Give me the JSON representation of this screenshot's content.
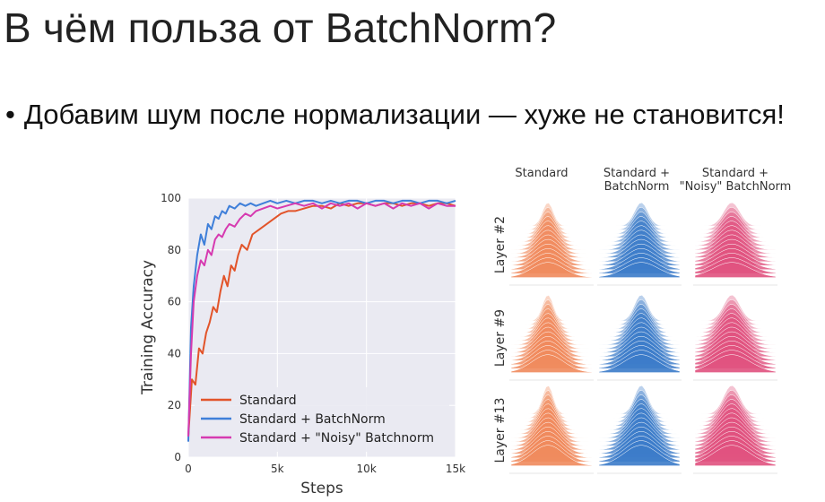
{
  "slide": {
    "title": "В чём польза от BatchNorm?",
    "bullet": "Добавим шум после нормализации — хуже не становится!"
  },
  "chart_data": [
    {
      "type": "line",
      "xlabel": "Steps",
      "ylabel": "Training Accuracy",
      "xlim": [
        0,
        15000
      ],
      "ylim": [
        0,
        100
      ],
      "x_ticks": [
        "0",
        "5k",
        "10k",
        "15k"
      ],
      "y_ticks": [
        "0",
        "20",
        "40",
        "60",
        "80",
        "100"
      ],
      "grid": true,
      "legend_position": "bottom-left",
      "series": [
        {
          "name": "Standard",
          "color": "#e2542a",
          "x": [
            0,
            200,
            400,
            600,
            800,
            1000,
            1200,
            1400,
            1600,
            1800,
            2000,
            2200,
            2400,
            2600,
            2800,
            3000,
            3300,
            3600,
            4000,
            4400,
            4800,
            5200,
            5600,
            6000,
            6500,
            7000,
            7500,
            8000,
            8500,
            9000,
            9500,
            10000,
            10500,
            11000,
            11500,
            12000,
            12500,
            13000,
            13500,
            14000,
            14500,
            15000
          ],
          "y": [
            8,
            30,
            28,
            42,
            40,
            48,
            52,
            58,
            56,
            64,
            70,
            66,
            74,
            72,
            78,
            82,
            80,
            86,
            88,
            90,
            92,
            94,
            95,
            95,
            96,
            97,
            97,
            96,
            98,
            97,
            98,
            98,
            97,
            98,
            98,
            97,
            98,
            98,
            97,
            98,
            98,
            97
          ]
        },
        {
          "name": "Standard + BatchNorm",
          "color": "#3f7fd9",
          "x": [
            0,
            150,
            300,
            500,
            700,
            900,
            1100,
            1300,
            1500,
            1700,
            1900,
            2100,
            2300,
            2600,
            2900,
            3200,
            3500,
            3800,
            4200,
            4600,
            5000,
            5500,
            6000,
            6500,
            7000,
            7500,
            8000,
            8500,
            9000,
            9500,
            10000,
            10500,
            11000,
            11500,
            12000,
            12500,
            13000,
            13500,
            14000,
            14500,
            15000
          ],
          "y": [
            6,
            50,
            66,
            78,
            86,
            82,
            90,
            88,
            93,
            92,
            95,
            94,
            97,
            96,
            98,
            97,
            98,
            97,
            98,
            99,
            98,
            99,
            98,
            99,
            99,
            98,
            99,
            98,
            99,
            99,
            98,
            99,
            99,
            98,
            99,
            99,
            98,
            99,
            99,
            98,
            99
          ]
        },
        {
          "name": "Standard + \"Noisy\" Batchnorm",
          "color": "#d63ab0",
          "x": [
            0,
            150,
            300,
            500,
            700,
            900,
            1100,
            1300,
            1500,
            1700,
            1900,
            2100,
            2300,
            2600,
            2900,
            3200,
            3500,
            3800,
            4200,
            4600,
            5000,
            5500,
            6000,
            6500,
            7000,
            7500,
            8000,
            8500,
            9000,
            9500,
            10000,
            10500,
            11000,
            11500,
            12000,
            12500,
            13000,
            13500,
            14000,
            14500,
            15000
          ],
          "y": [
            8,
            40,
            60,
            70,
            76,
            74,
            80,
            78,
            84,
            86,
            85,
            88,
            90,
            89,
            92,
            94,
            93,
            95,
            96,
            97,
            96,
            97,
            98,
            97,
            98,
            96,
            98,
            97,
            98,
            96,
            98,
            97,
            98,
            96,
            98,
            97,
            98,
            96,
            98,
            97,
            97
          ]
        }
      ]
    },
    {
      "type": "other",
      "column_labels": [
        "Standard",
        "Standard +\nBatchNorm",
        "Standard +\n\"Noisy\" BatchNorm"
      ],
      "row_labels": [
        "Layer #2",
        "Layer #9",
        "Layer #13"
      ],
      "colors": [
        "#f08a5d",
        "#3d7cc9",
        "#e0527f"
      ]
    }
  ]
}
